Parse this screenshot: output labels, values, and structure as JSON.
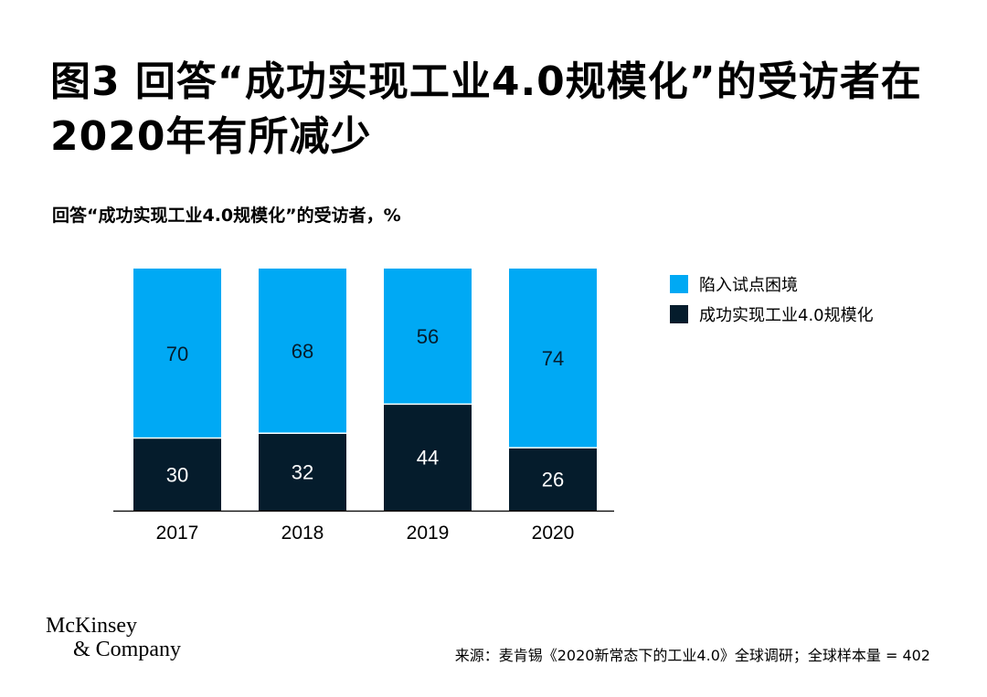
{
  "title": "图3 回答“成功实现工业4.0规模化”的受访者在2020年有所减少",
  "subtitle": "回答“成功实现工业4.0规模化”的受访者，%",
  "legend": [
    {
      "label": "陷入试点困境",
      "color": "#00A9F4"
    },
    {
      "label": "成功实现工业4.0规模化",
      "color": "#051C2C"
    }
  ],
  "logo": {
    "line1": "McKinsey",
    "line2": "& Company"
  },
  "source": "来源：麦肯锡《2020新常态下的工业4.0》全球调研；全球样本量 = 402",
  "chart_data": {
    "type": "bar",
    "stacked": true,
    "categories": [
      "2017",
      "2018",
      "2019",
      "2020"
    ],
    "series": [
      {
        "name": "成功实现工业4.0规模化",
        "values": [
          30,
          32,
          44,
          26
        ],
        "color": "#051C2C"
      },
      {
        "name": "陷入试点困境",
        "values": [
          70,
          68,
          56,
          74
        ],
        "color": "#00A9F4"
      }
    ],
    "ylim": [
      0,
      100
    ],
    "grid": false,
    "legend_position": "right"
  }
}
